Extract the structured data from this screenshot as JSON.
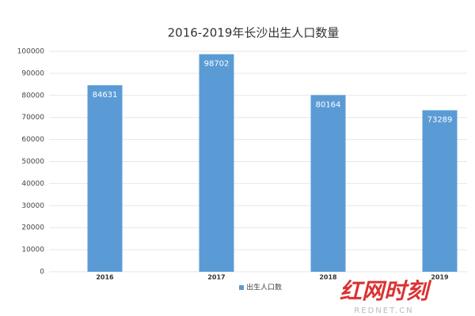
{
  "chart_data": {
    "type": "bar",
    "title": "2016-2019年长沙出生人口数量",
    "categories": [
      "2016",
      "2017",
      "2018",
      "2019"
    ],
    "series": [
      {
        "name": "出生人口数",
        "color": "#5b9bd5",
        "values": [
          84631,
          98702,
          80164,
          73289
        ]
      }
    ],
    "ylim": [
      0,
      100000
    ],
    "yticks": [
      0,
      10000,
      20000,
      30000,
      40000,
      50000,
      60000,
      70000,
      80000,
      90000,
      100000
    ],
    "grid": true,
    "legend": "bottom",
    "watermark": {
      "logo": "红网时刻",
      "site": "REDNET.CN"
    }
  }
}
